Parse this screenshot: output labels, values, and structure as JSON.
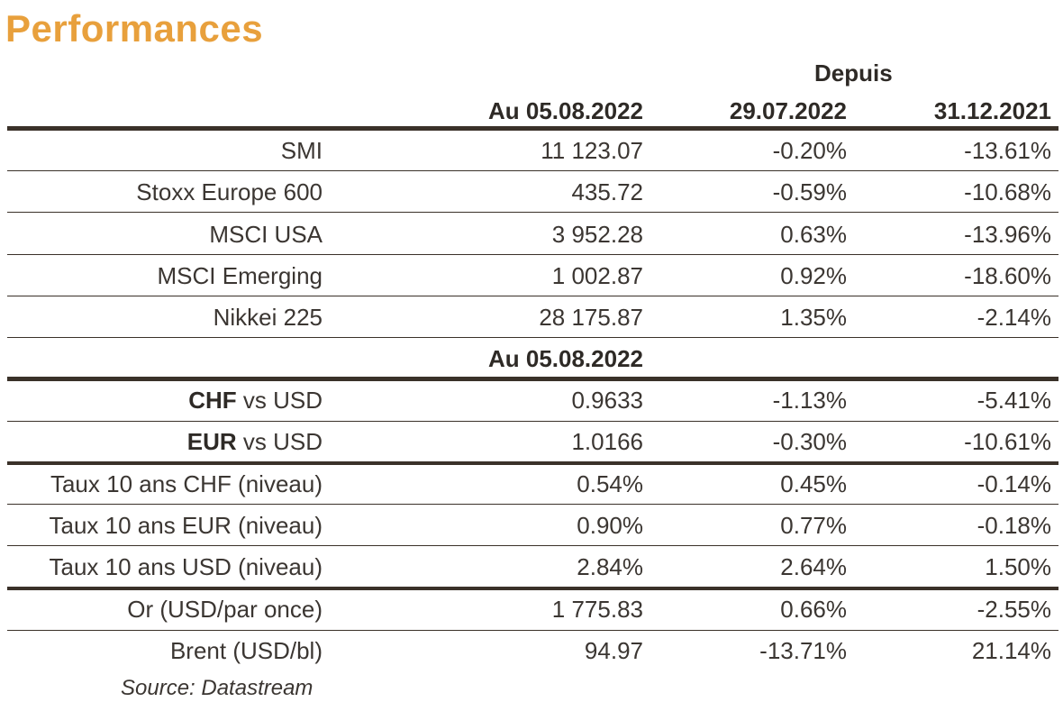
{
  "title": "Performances",
  "header": {
    "group": "Depuis",
    "col1": "Au 05.08.2022",
    "col2": "29.07.2022",
    "col3": "31.12.2021"
  },
  "rows": [
    {
      "label": "SMI",
      "v1": "11 123.07",
      "v2": "-0.20%",
      "v3": "-13.61%"
    },
    {
      "label": "Stoxx Europe 600",
      "v1": "435.72",
      "v2": "-0.59%",
      "v3": "-10.68%"
    },
    {
      "label": "MSCI USA",
      "v1": "3 952.28",
      "v2": "0.63%",
      "v3": "-13.96%"
    },
    {
      "label": "MSCI Emerging",
      "v1": "1 002.87",
      "v2": "0.92%",
      "v3": "-18.60%"
    },
    {
      "label": "Nikkei 225",
      "v1": "28 175.87",
      "v2": "1.35%",
      "v3": "-2.14%"
    },
    {
      "subheader": "Au 05.08.2022"
    },
    {
      "label_bold": "CHF",
      "label_rest": " vs USD",
      "v1": "0.9633",
      "v2": "-1.13%",
      "v3": "-5.41%"
    },
    {
      "label_bold": "EUR",
      "label_rest": " vs USD",
      "v1": "1.0166",
      "v2": "-0.30%",
      "v3": "-10.61%"
    },
    {
      "label": "Taux 10 ans CHF (niveau)",
      "v1": "0.54%",
      "v2": "0.45%",
      "v3": "-0.14%"
    },
    {
      "label": "Taux 10 ans EUR (niveau)",
      "v1": "0.90%",
      "v2": "0.77%",
      "v3": "-0.18%"
    },
    {
      "label": "Taux 10 ans USD (niveau)",
      "v1": "2.84%",
      "v2": "2.64%",
      "v3": "1.50%"
    },
    {
      "label": "Or (USD/par once)",
      "v1": "1 775.83",
      "v2": "0.66%",
      "v3": "-2.55%"
    },
    {
      "label": "Brent (USD/bl)",
      "v1": "94.97",
      "v2": "-13.71%",
      "v3": "21.14%"
    }
  ],
  "source": "Source: Datastream",
  "colors": {
    "title": "#e8a03c",
    "rules": "#3a3129",
    "text": "#3b3632"
  }
}
